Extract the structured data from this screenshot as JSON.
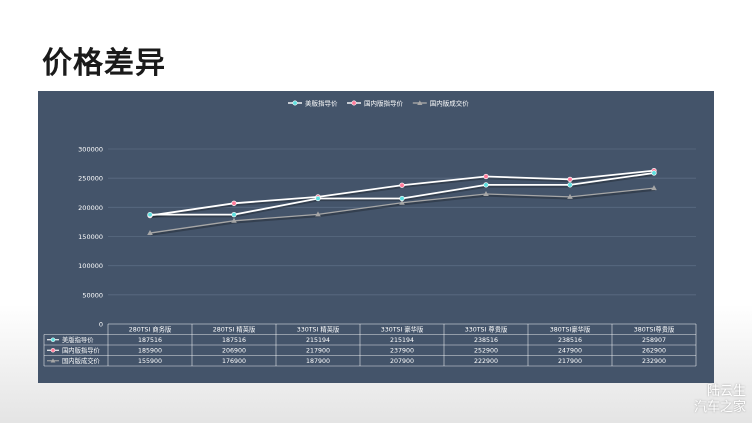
{
  "slide": {
    "title": "价格差异"
  },
  "watermark": {
    "line1": "陆云生",
    "line2": "汽车之家"
  },
  "colors": {
    "panel": "#44546a",
    "grid": "#5a6b82",
    "text": "#ffffff",
    "series": [
      "#ffffff",
      "#ffffff",
      "#a6a6a6"
    ],
    "markers": [
      "#5ee0e0",
      "#ff7a9a",
      "#a6a6a6"
    ]
  },
  "chart_data": {
    "type": "line",
    "title": "",
    "xlabel": "",
    "ylabel": "",
    "ylim": [
      0,
      300000
    ],
    "yticks": [
      0,
      50000,
      100000,
      150000,
      200000,
      250000,
      300000
    ],
    "grid": true,
    "legend": "top-center",
    "data_table": true,
    "categories": [
      "280TSI 商务版",
      "280TSI 精英版",
      "330TSI 精英版",
      "330TSI 豪华版",
      "330TSI 尊贵版",
      "380TSI豪华版",
      "380TSI尊贵版"
    ],
    "series": [
      {
        "name": "美版指导价",
        "marker": "circle",
        "values": [
          187516,
          187516,
          215194,
          215194,
          238516,
          238516,
          258907
        ]
      },
      {
        "name": "国内版指导价",
        "marker": "circle",
        "values": [
          185900,
          206900,
          217900,
          237900,
          252900,
          247900,
          262900
        ]
      },
      {
        "name": "国内版成交价",
        "marker": "triangle",
        "values": [
          155900,
          176900,
          187900,
          207900,
          222900,
          217900,
          232900
        ]
      }
    ]
  }
}
